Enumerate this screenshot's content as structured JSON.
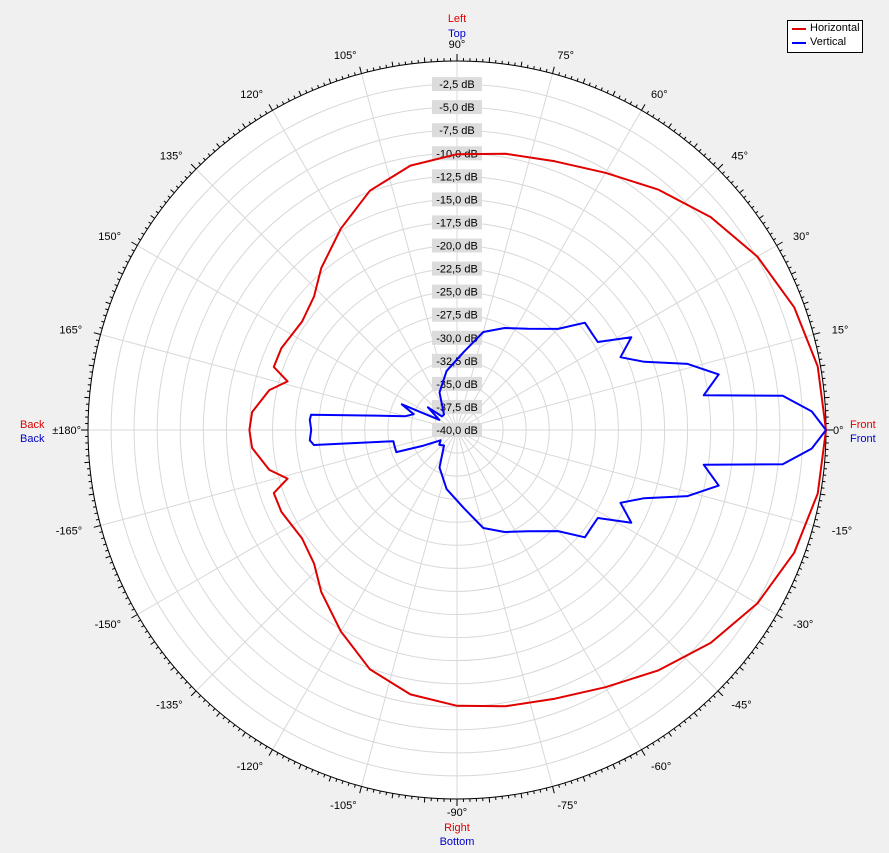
{
  "axis_labels": {
    "top_primary": "Left",
    "top_secondary": "Top",
    "bottom_primary": "Right",
    "bottom_secondary": "Bottom",
    "left_primary": "Back",
    "left_secondary": "Back",
    "right_primary": "Front",
    "right_secondary": "Front"
  },
  "colors": {
    "horizontal": "#e00000",
    "vertical": "#0000ff",
    "label_primary": "#e00000",
    "label_secondary": "#0000cc"
  },
  "chart_data": {
    "type": "polar",
    "radial_unit": "dB",
    "rlim": [
      -40,
      0
    ],
    "ring_labels": [
      "-2,5 dB",
      "-5,0 dB",
      "-7,5 dB",
      "-10,0 dB",
      "-12,5 dB",
      "-15,0 dB",
      "-17,5 dB",
      "-20,0 dB",
      "-22,5 dB",
      "-25,0 dB",
      "-27,5 dB",
      "-30,0 dB",
      "-32,5 dB",
      "-35,0 dB",
      "-37,5 dB",
      "-40,0 dB"
    ],
    "angle_labels": [
      {
        "deg": 0,
        "text": "0°"
      },
      {
        "deg": 15,
        "text": "15°"
      },
      {
        "deg": 30,
        "text": "30°"
      },
      {
        "deg": 45,
        "text": "45°"
      },
      {
        "deg": 60,
        "text": "60°"
      },
      {
        "deg": 75,
        "text": "75°"
      },
      {
        "deg": 90,
        "text": "90°"
      },
      {
        "deg": 105,
        "text": "105°"
      },
      {
        "deg": 120,
        "text": "120°"
      },
      {
        "deg": 135,
        "text": "135°"
      },
      {
        "deg": 150,
        "text": "150°"
      },
      {
        "deg": 165,
        "text": "165°"
      },
      {
        "deg": 180,
        "text": "±180°"
      },
      {
        "deg": -165,
        "text": "-165°"
      },
      {
        "deg": -150,
        "text": "-150°"
      },
      {
        "deg": -135,
        "text": "-135°"
      },
      {
        "deg": -120,
        "text": "-120°"
      },
      {
        "deg": -105,
        "text": "-105°"
      },
      {
        "deg": -90,
        "text": "-90°"
      },
      {
        "deg": -75,
        "text": "-75°"
      },
      {
        "deg": -60,
        "text": "-60°"
      },
      {
        "deg": -45,
        "text": "-45°"
      },
      {
        "deg": -30,
        "text": "-30°"
      },
      {
        "deg": -15,
        "text": "-15°"
      }
    ],
    "legend": [
      "Horizontal",
      "Vertical"
    ],
    "legend_position": "top-right",
    "grid": true,
    "series": [
      {
        "name": "Horizontal",
        "points": [
          [
            0,
            0
          ],
          [
            10,
            -0.3
          ],
          [
            20,
            -1.1
          ],
          [
            30,
            -2.4
          ],
          [
            40,
            -4.1
          ],
          [
            50,
            -6.0
          ],
          [
            60,
            -7.8
          ],
          [
            70,
            -9.0
          ],
          [
            80,
            -9.6
          ],
          [
            90,
            -10.1
          ],
          [
            100,
            -10.9
          ],
          [
            110,
            -12.4
          ],
          [
            120,
            -14.8
          ],
          [
            130,
            -17.1
          ],
          [
            137,
            -18.8
          ],
          [
            145,
            -19.5
          ],
          [
            155,
            -19.0
          ],
          [
            161,
            -19.0
          ],
          [
            164,
            -20.9
          ],
          [
            168,
            -19.2
          ],
          [
            175,
            -17.7
          ],
          [
            180,
            -17.5
          ],
          [
            -175,
            -17.7
          ],
          [
            -168,
            -19.2
          ],
          [
            -164,
            -20.9
          ],
          [
            -161,
            -19.0
          ],
          [
            -155,
            -19.0
          ],
          [
            -145,
            -19.5
          ],
          [
            -137,
            -18.8
          ],
          [
            -130,
            -17.1
          ],
          [
            -120,
            -14.8
          ],
          [
            -110,
            -12.4
          ],
          [
            -100,
            -10.9
          ],
          [
            -90,
            -10.1
          ],
          [
            -80,
            -9.6
          ],
          [
            -70,
            -9.0
          ],
          [
            -60,
            -7.8
          ],
          [
            -50,
            -6.0
          ],
          [
            -40,
            -4.1
          ],
          [
            -30,
            -2.4
          ],
          [
            -20,
            -1.1
          ],
          [
            -10,
            -0.3
          ]
        ]
      },
      {
        "name": "Vertical",
        "points": [
          [
            0,
            0
          ],
          [
            3,
            -1.5
          ],
          [
            6,
            -4.5
          ],
          [
            8,
            -13.0
          ],
          [
            12,
            -11.0
          ],
          [
            16,
            -14.0
          ],
          [
            20,
            -18.4
          ],
          [
            24,
            -20.6
          ],
          [
            28,
            -18.6
          ],
          [
            32,
            -22.0
          ],
          [
            36,
            -22.0
          ],
          [
            40,
            -21.9
          ],
          [
            45,
            -24.5
          ],
          [
            55,
            -26.6
          ],
          [
            65,
            -27.8
          ],
          [
            75,
            -29.0
          ],
          [
            85,
            -31.5
          ],
          [
            100,
            -33.5
          ],
          [
            115,
            -35.5
          ],
          [
            130,
            -37.8
          ],
          [
            138,
            -37.8
          ],
          [
            142,
            -36.0
          ],
          [
            150,
            -37.8
          ],
          [
            155,
            -33.4
          ],
          [
            160,
            -35.0
          ],
          [
            165,
            -34.2
          ],
          [
            170,
            -31.0
          ],
          [
            174,
            -24.1
          ],
          [
            176,
            -24.0
          ],
          [
            180,
            -24.2
          ],
          [
            -176,
            -24.0
          ],
          [
            -174,
            -24.4
          ],
          [
            -170,
            -33.0
          ],
          [
            -167,
            -33.0
          ],
          [
            -160,
            -33.0
          ],
          [
            -155,
            -36.0
          ],
          [
            -148,
            -37.9
          ],
          [
            -140,
            -37.5
          ],
          [
            -130,
            -37.8
          ],
          [
            -115,
            -35.5
          ],
          [
            -100,
            -33.5
          ],
          [
            -85,
            -31.5
          ],
          [
            -75,
            -29.0
          ],
          [
            -65,
            -27.8
          ],
          [
            -55,
            -26.6
          ],
          [
            -45,
            -24.5
          ],
          [
            -40,
            -21.9
          ],
          [
            -36,
            -22.0
          ],
          [
            -32,
            -22.0
          ],
          [
            -28,
            -18.6
          ],
          [
            -24,
            -20.6
          ],
          [
            -20,
            -18.4
          ],
          [
            -16,
            -14.0
          ],
          [
            -12,
            -11.0
          ],
          [
            -8,
            -13.0
          ],
          [
            -6,
            -4.5
          ],
          [
            -3,
            -1.5
          ]
        ]
      }
    ]
  }
}
